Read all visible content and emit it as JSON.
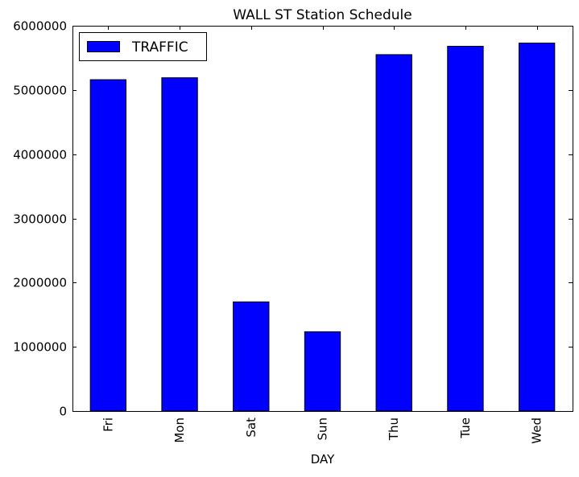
{
  "chart_data": {
    "type": "bar",
    "title": "WALL ST Station Schedule",
    "xlabel": "DAY",
    "ylabel": "",
    "categories": [
      "Fri",
      "Mon",
      "Sat",
      "Sun",
      "Thu",
      "Tue",
      "Wed"
    ],
    "series": [
      {
        "name": "TRAFFIC",
        "color": "#0000ff",
        "values": [
          5160000,
          5190000,
          1700000,
          1235000,
          5550000,
          5680000,
          5730000
        ]
      }
    ],
    "ylim": [
      0,
      6000000
    ],
    "yticks": [
      0,
      1000000,
      2000000,
      3000000,
      4000000,
      5000000,
      6000000
    ],
    "ytick_labels": [
      "0",
      "1000000",
      "2000000",
      "3000000",
      "4000000",
      "5000000",
      "6000000"
    ],
    "grid": false,
    "legend_position": "upper-left"
  }
}
